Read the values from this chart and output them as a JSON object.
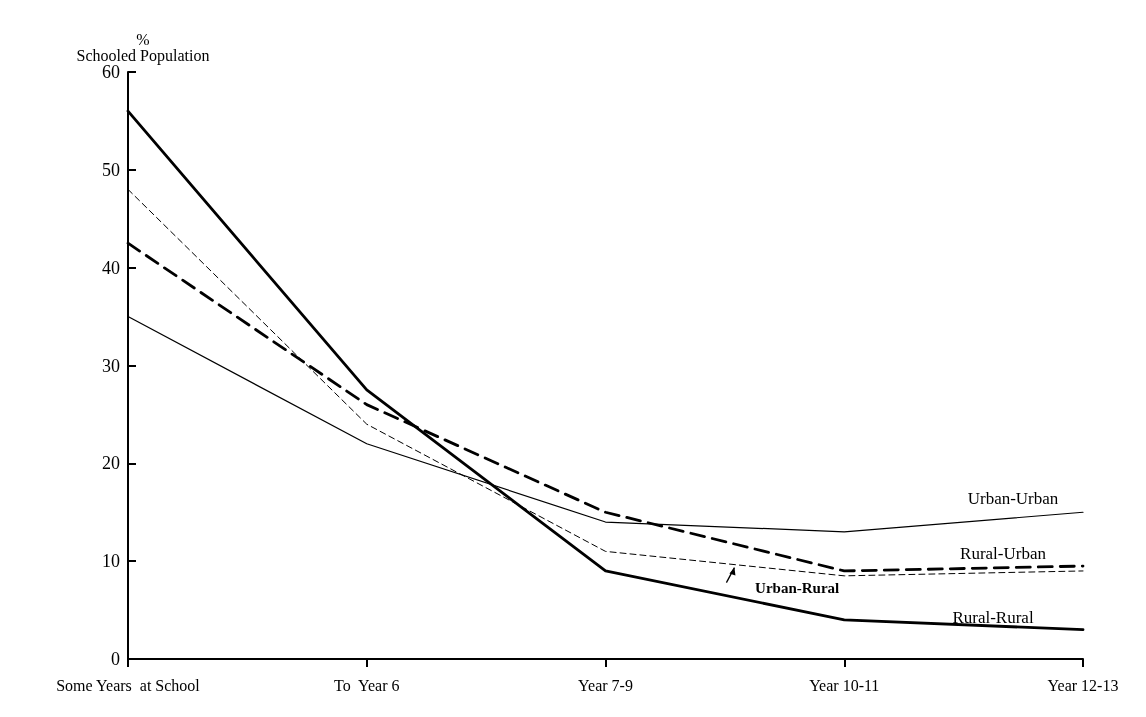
{
  "chart_data": {
    "type": "line",
    "ylabel": "%\nSchooled Population",
    "categories": [
      "Some Years  at School",
      "To  Year 6",
      "Year 7-9",
      "Year 10-11",
      "Year 12-13"
    ],
    "series": [
      {
        "name": "Urban-Urban",
        "color": "#000000",
        "line_style": "solid",
        "values": [
          35,
          22,
          14,
          13,
          15
        ]
      },
      {
        "name": "Rural-Urban",
        "color": "#000000",
        "line_style": "dashed",
        "values": [
          42.5,
          26,
          15,
          9,
          9.5
        ]
      },
      {
        "name": "Rural-Rural",
        "color": "#000000",
        "line_style": "solid",
        "values": [
          56,
          27.5,
          9,
          4,
          3
        ]
      },
      {
        "name": "Urban-Rural",
        "color": "#000000",
        "line_style": "dashed",
        "values": [
          48,
          24,
          11,
          8.5,
          9
        ]
      }
    ],
    "ylim": [
      0,
      60
    ],
    "yticks": [
      0,
      10,
      20,
      30,
      40,
      50,
      60
    ],
    "grid": false,
    "legend": false,
    "marker": "none"
  }
}
